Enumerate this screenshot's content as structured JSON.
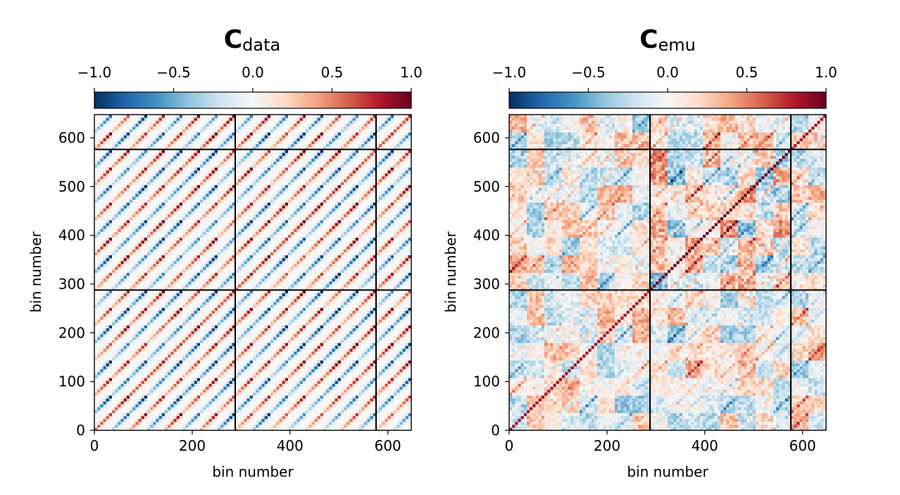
{
  "chart_data": [
    {
      "type": "heatmap",
      "title_symbol": "C",
      "title_subscript": "data",
      "xlabel": "bin number",
      "ylabel": "bin number",
      "xlim": [
        0,
        648
      ],
      "ylim": [
        0,
        648
      ],
      "xticks": [
        0,
        200,
        400,
        600
      ],
      "yticks": [
        0,
        100,
        200,
        300,
        400,
        500,
        600
      ],
      "block_boundaries": [
        288,
        576
      ],
      "colorbar": {
        "range": [
          -1.0,
          1.0
        ],
        "ticks": [
          "−1.0",
          "−0.5",
          "0.0",
          "0.5",
          "1.0"
        ],
        "colormap": "RdBu_r",
        "stops": [
          "#053061",
          "#2166ac",
          "#4393c3",
          "#92c5de",
          "#d1e5f0",
          "#f7f7f7",
          "#fddbc7",
          "#f4a582",
          "#d6604d",
          "#b2182b",
          "#67001f"
        ]
      },
      "pattern": "strong alternating positive/negative diagonal stripes in every sub-block"
    },
    {
      "type": "heatmap",
      "title_symbol": "C",
      "title_subscript": "emu",
      "xlabel": "bin number",
      "ylabel": "bin number",
      "xlim": [
        0,
        648
      ],
      "ylim": [
        0,
        648
      ],
      "xticks": [
        0,
        200,
        400,
        600
      ],
      "yticks": [
        0,
        100,
        200,
        300,
        400,
        500,
        600
      ],
      "block_boundaries": [
        288,
        576
      ],
      "colorbar": {
        "range": [
          -1.0,
          1.0
        ],
        "ticks": [
          "−1.0",
          "−0.5",
          "0.0",
          "0.5",
          "1.0"
        ],
        "colormap": "RdBu_r",
        "stops": [
          "#053061",
          "#2166ac",
          "#4393c3",
          "#92c5de",
          "#d1e5f0",
          "#f7f7f7",
          "#fddbc7",
          "#f4a582",
          "#d6604d",
          "#b2182b",
          "#67001f"
        ]
      },
      "pattern": "weaker noisy structure with a positive main diagonal and blocky patches"
    }
  ]
}
